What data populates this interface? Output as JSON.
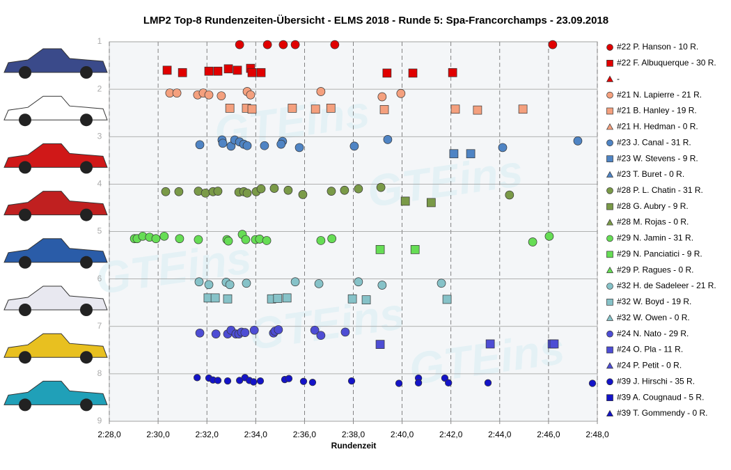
{
  "chart_data": {
    "type": "scatter",
    "title": "LMP2  Top-8 Rundenzeiten-Übersicht  - ELMS 2018  - Runde  5: Spa-Francorchamps  - 23.09.2018",
    "xlabel": "Rundenzeit",
    "watermark": "GTEins",
    "xlim": [
      148,
      168
    ],
    "xticks": [
      {
        "value": 148,
        "label": "2:28,0"
      },
      {
        "value": 150,
        "label": "2:30,0"
      },
      {
        "value": 152,
        "label": "2:32,0"
      },
      {
        "value": 154,
        "label": "2:34,0"
      },
      {
        "value": 156,
        "label": "2:36,0"
      },
      {
        "value": 158,
        "label": "2:38,0"
      },
      {
        "value": 160,
        "label": "2:40,0"
      },
      {
        "value": 162,
        "label": "2:42,0"
      },
      {
        "value": 164,
        "label": "2:44,0"
      },
      {
        "value": 166,
        "label": "2:46,0"
      },
      {
        "value": 168,
        "label": "2:48,0"
      }
    ],
    "ylim": [
      1,
      9
    ],
    "yticks": [
      1,
      2,
      3,
      4,
      5,
      6,
      7,
      8,
      9
    ],
    "y_reversed": true,
    "grid": true,
    "series": [
      {
        "name": "#22 P. Hanson - 10 R.",
        "color": "#e00000",
        "marker": "circle",
        "x": [
          153.34,
          154.48,
          155.13,
          155.62,
          157.24,
          166.17
        ],
        "y": [
          1.06,
          1.06,
          1.06,
          1.06,
          1.06,
          1.06
        ]
      },
      {
        "name": "#22 F. Albuquerque - 30 R.",
        "color": "#e00000",
        "marker": "square",
        "x": [
          150.37,
          151.0,
          152.08,
          152.45,
          152.88,
          153.25,
          153.79,
          153.85,
          154.22,
          159.38,
          160.44,
          162.07
        ],
        "y": [
          1.6,
          1.65,
          1.62,
          1.62,
          1.57,
          1.6,
          1.56,
          1.65,
          1.65,
          1.66,
          1.66,
          1.65
        ]
      },
      {
        "name": "-",
        "color": "#e00000",
        "marker": "triangle",
        "x": [],
        "y": []
      },
      {
        "name": "#21 N. Lapierre - 21 R.",
        "color": "#f4a07e",
        "marker": "circle",
        "x": [
          150.48,
          150.77,
          151.62,
          151.85,
          152.08,
          152.59,
          153.65,
          153.79,
          156.67,
          159.18,
          159.95
        ],
        "y": [
          2.08,
          2.08,
          2.12,
          2.08,
          2.12,
          2.14,
          2.05,
          2.12,
          2.05,
          2.16,
          2.09
        ]
      },
      {
        "name": "#21 B. Hanley - 19 R.",
        "color": "#f4a07e",
        "marker": "square",
        "x": [
          152.94,
          153.62,
          153.85,
          155.5,
          156.45,
          157.08,
          159.27,
          162.18,
          163.09,
          164.95
        ],
        "y": [
          2.4,
          2.4,
          2.42,
          2.4,
          2.42,
          2.4,
          2.43,
          2.42,
          2.44,
          2.42
        ]
      },
      {
        "name": "#21 H. Hedman - 0 R.",
        "color": "#f4a07e",
        "marker": "triangle",
        "x": [],
        "y": []
      },
      {
        "name": "#23 J. Canal - 31 R.",
        "color": "#4f84c4",
        "marker": "circle",
        "x": [
          151.71,
          152.62,
          152.65,
          152.99,
          153.14,
          153.34,
          153.51,
          153.65,
          154.36,
          155.1,
          155.04,
          155.79,
          158.04,
          159.41,
          164.12,
          167.2
        ],
        "y": [
          3.17,
          3.07,
          3.14,
          3.2,
          3.07,
          3.11,
          3.16,
          3.19,
          3.19,
          3.1,
          3.16,
          3.23,
          3.2,
          3.06,
          3.23,
          3.09
        ]
      },
      {
        "name": "#23 W. Stevens - 9 R.",
        "color": "#4f84c4",
        "marker": "square",
        "x": [
          162.12,
          162.81
        ],
        "y": [
          3.36,
          3.36
        ]
      },
      {
        "name": "#23 T. Buret - 0 R.",
        "color": "#4f84c4",
        "marker": "triangle",
        "x": [],
        "y": []
      },
      {
        "name": "#28 P. L. Chatin - 31 R.",
        "color": "#7a9a48",
        "marker": "circle",
        "x": [
          150.31,
          150.85,
          151.65,
          151.94,
          152.25,
          152.45,
          153.31,
          153.51,
          153.65,
          154.02,
          154.22,
          154.76,
          155.33,
          155.93,
          157.1,
          157.64,
          158.21,
          159.13,
          164.4
        ],
        "y": [
          4.16,
          4.16,
          4.15,
          4.19,
          4.16,
          4.15,
          4.17,
          4.16,
          4.19,
          4.16,
          4.1,
          4.09,
          4.13,
          4.22,
          4.15,
          4.13,
          4.1,
          4.07,
          4.23
        ]
      },
      {
        "name": "#28 G. Aubry - 9 R.",
        "color": "#7a9a48",
        "marker": "square",
        "x": [
          160.13,
          161.19
        ],
        "y": [
          4.36,
          4.39
        ]
      },
      {
        "name": "#28 M. Rojas - 0 R.",
        "color": "#7a9a48",
        "marker": "triangle",
        "x": [],
        "y": []
      },
      {
        "name": "#29 N. Jamin - 31 R.",
        "color": "#66dd55",
        "marker": "circle",
        "x": [
          149.03,
          149.14,
          149.37,
          149.65,
          149.91,
          150.25,
          150.88,
          151.65,
          152.82,
          152.88,
          153.45,
          153.59,
          153.99,
          154.16,
          154.45,
          156.67,
          157.12,
          165.35,
          166.03
        ],
        "y": [
          5.15,
          5.15,
          5.1,
          5.12,
          5.15,
          5.1,
          5.15,
          5.17,
          5.17,
          5.2,
          5.06,
          5.17,
          5.17,
          5.16,
          5.19,
          5.19,
          5.15,
          5.22,
          5.1
        ]
      },
      {
        "name": "#29 N. Panciatici - 9 R.",
        "color": "#66dd55",
        "marker": "square",
        "x": [
          159.1,
          160.53
        ],
        "y": [
          5.38,
          5.38
        ]
      },
      {
        "name": "#29 P. Ragues - 0 R.",
        "color": "#66dd55",
        "marker": "triangle",
        "x": [],
        "y": []
      },
      {
        "name": "#32 H. de Sadeleer - 21 R.",
        "color": "#86c2c8",
        "marker": "circle",
        "x": [
          151.68,
          152.08,
          152.79,
          152.94,
          153.62,
          155.62,
          156.59,
          158.21,
          159.18,
          161.61
        ],
        "y": [
          6.06,
          6.12,
          6.07,
          6.12,
          6.09,
          6.06,
          6.1,
          6.06,
          6.13,
          6.09
        ]
      },
      {
        "name": "#32 W. Boyd - 19 R.",
        "color": "#86c2c8",
        "marker": "square",
        "x": [
          152.05,
          152.34,
          152.85,
          154.65,
          154.9,
          155.28,
          157.96,
          158.53,
          161.84
        ],
        "y": [
          6.4,
          6.4,
          6.42,
          6.42,
          6.41,
          6.4,
          6.42,
          6.44,
          6.43
        ]
      },
      {
        "name": "#32 W. Owen - 0 R.",
        "color": "#86c2c8",
        "marker": "triangle",
        "x": [],
        "y": []
      },
      {
        "name": "#24 N. Nato - 29 R.",
        "color": "#4d4dd4",
        "marker": "circle",
        "x": [
          151.71,
          152.37,
          152.85,
          152.99,
          153.19,
          153.31,
          153.42,
          153.56,
          153.94,
          154.73,
          154.79,
          154.93,
          156.42,
          156.67,
          157.67
        ],
        "y": [
          7.14,
          7.16,
          7.16,
          7.08,
          7.16,
          7.16,
          7.12,
          7.13,
          7.08,
          7.14,
          7.1,
          7.07,
          7.08,
          7.19,
          7.12
        ]
      },
      {
        "name": "#24 O. Pla - 11 R.",
        "color": "#4d4dd4",
        "marker": "square",
        "x": [
          159.1,
          163.61,
          166.15,
          166.23
        ],
        "y": [
          7.38,
          7.37,
          7.37,
          7.37
        ]
      },
      {
        "name": "#24 P. Petit - 0 R.",
        "color": "#4d4dd4",
        "marker": "triangle",
        "x": [],
        "y": []
      },
      {
        "name": "#39 J. Hirschi - 35 R.",
        "color": "#1414c8",
        "marker": "circle",
        "x": [
          151.6,
          152.08,
          152.25,
          152.45,
          152.85,
          153.34,
          153.56,
          153.74,
          153.91,
          154.19,
          155.19,
          155.36,
          155.96,
          156.33,
          157.93,
          159.87,
          160.67,
          160.67,
          161.75,
          161.9,
          163.52,
          167.8
        ],
        "y": [
          8.08,
          8.09,
          8.13,
          8.14,
          8.15,
          8.14,
          8.08,
          8.14,
          8.17,
          8.15,
          8.12,
          8.1,
          8.16,
          8.18,
          8.15,
          8.2,
          8.09,
          8.19,
          8.09,
          8.19,
          8.19,
          8.2
        ]
      },
      {
        "name": "#39 A. Cougnaud - 5 R.",
        "color": "#1414c8",
        "marker": "square",
        "x": [],
        "y": []
      },
      {
        "name": "#39 T. Gommendy - 0 R.",
        "color": "#1414c8",
        "marker": "triangle",
        "x": [],
        "y": []
      }
    ]
  }
}
